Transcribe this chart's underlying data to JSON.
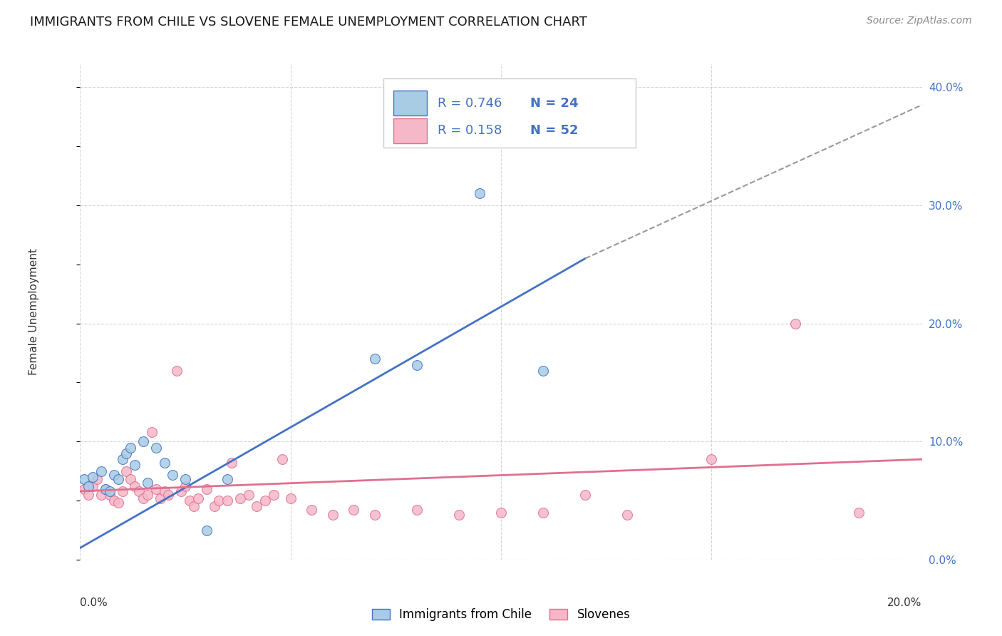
{
  "title": "IMMIGRANTS FROM CHILE VS SLOVENE FEMALE UNEMPLOYMENT CORRELATION CHART",
  "source": "Source: ZipAtlas.com",
  "ylabel": "Female Unemployment",
  "legend_blue_r": "0.746",
  "legend_blue_n": "24",
  "legend_pink_r": "0.158",
  "legend_pink_n": "52",
  "legend_label_blue": "Immigrants from Chile",
  "legend_label_pink": "Slovenes",
  "blue_color": "#a8cce4",
  "pink_color": "#f5b8c8",
  "line_blue": "#4472c4",
  "line_pink": "#e07090",
  "text_blue": "#4472c4",
  "blue_scatter": [
    [
      0.001,
      0.068
    ],
    [
      0.002,
      0.062
    ],
    [
      0.003,
      0.07
    ],
    [
      0.005,
      0.075
    ],
    [
      0.006,
      0.06
    ],
    [
      0.007,
      0.058
    ],
    [
      0.008,
      0.072
    ],
    [
      0.009,
      0.068
    ],
    [
      0.01,
      0.085
    ],
    [
      0.011,
      0.09
    ],
    [
      0.012,
      0.095
    ],
    [
      0.013,
      0.08
    ],
    [
      0.015,
      0.1
    ],
    [
      0.016,
      0.065
    ],
    [
      0.018,
      0.095
    ],
    [
      0.02,
      0.082
    ],
    [
      0.022,
      0.072
    ],
    [
      0.025,
      0.068
    ],
    [
      0.03,
      0.025
    ],
    [
      0.035,
      0.068
    ],
    [
      0.07,
      0.17
    ],
    [
      0.08,
      0.165
    ],
    [
      0.095,
      0.31
    ],
    [
      0.11,
      0.16
    ]
  ],
  "pink_scatter": [
    [
      0.001,
      0.06
    ],
    [
      0.002,
      0.055
    ],
    [
      0.003,
      0.062
    ],
    [
      0.004,
      0.068
    ],
    [
      0.005,
      0.055
    ],
    [
      0.006,
      0.06
    ],
    [
      0.007,
      0.055
    ],
    [
      0.008,
      0.05
    ],
    [
      0.009,
      0.048
    ],
    [
      0.01,
      0.058
    ],
    [
      0.011,
      0.075
    ],
    [
      0.012,
      0.068
    ],
    [
      0.013,
      0.062
    ],
    [
      0.014,
      0.058
    ],
    [
      0.015,
      0.052
    ],
    [
      0.016,
      0.055
    ],
    [
      0.017,
      0.108
    ],
    [
      0.018,
      0.06
    ],
    [
      0.019,
      0.052
    ],
    [
      0.02,
      0.058
    ],
    [
      0.021,
      0.055
    ],
    [
      0.023,
      0.16
    ],
    [
      0.024,
      0.058
    ],
    [
      0.025,
      0.062
    ],
    [
      0.026,
      0.05
    ],
    [
      0.027,
      0.045
    ],
    [
      0.028,
      0.052
    ],
    [
      0.03,
      0.06
    ],
    [
      0.032,
      0.045
    ],
    [
      0.033,
      0.05
    ],
    [
      0.035,
      0.05
    ],
    [
      0.036,
      0.082
    ],
    [
      0.038,
      0.052
    ],
    [
      0.04,
      0.055
    ],
    [
      0.042,
      0.045
    ],
    [
      0.044,
      0.05
    ],
    [
      0.046,
      0.055
    ],
    [
      0.048,
      0.085
    ],
    [
      0.05,
      0.052
    ],
    [
      0.055,
      0.042
    ],
    [
      0.06,
      0.038
    ],
    [
      0.065,
      0.042
    ],
    [
      0.07,
      0.038
    ],
    [
      0.08,
      0.042
    ],
    [
      0.09,
      0.038
    ],
    [
      0.1,
      0.04
    ],
    [
      0.11,
      0.04
    ],
    [
      0.12,
      0.055
    ],
    [
      0.13,
      0.038
    ],
    [
      0.15,
      0.085
    ],
    [
      0.17,
      0.2
    ],
    [
      0.185,
      0.04
    ]
  ],
  "xlim": [
    0.0,
    0.2
  ],
  "ylim": [
    0.0,
    0.42
  ],
  "background_color": "#ffffff",
  "grid_color": "#cccccc",
  "title_fontsize": 13,
  "source_fontsize": 10,
  "marker_size": 100,
  "blue_line_solid_end": 0.12,
  "right_ytick_vals": [
    0.0,
    0.1,
    0.2,
    0.3,
    0.4
  ]
}
